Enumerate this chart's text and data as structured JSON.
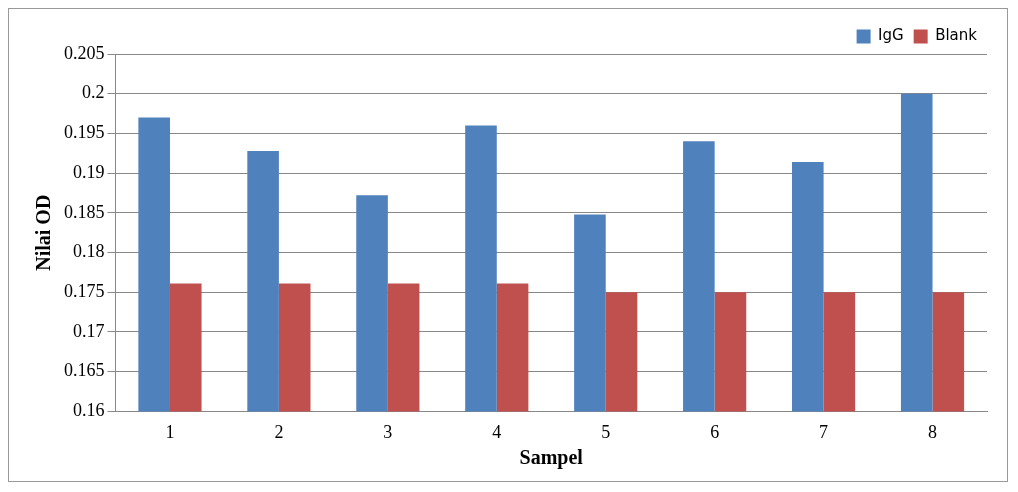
{
  "chart_data": {
    "type": "bar",
    "xlabel": "Sampel",
    "ylabel": "Nilai OD",
    "categories": [
      "1",
      "2",
      "3",
      "4",
      "5",
      "6",
      "7",
      "8"
    ],
    "series": [
      {
        "name": "IgG",
        "color": "#4f81bd",
        "values": [
          0.197,
          0.1928,
          0.1872,
          0.196,
          0.1848,
          0.194,
          0.1914,
          0.2
        ]
      },
      {
        "name": "Blank",
        "color": "#c0504d",
        "values": [
          0.1761,
          0.1761,
          0.1761,
          0.1761,
          0.175,
          0.175,
          0.175,
          0.175
        ]
      }
    ],
    "ylim": [
      0.16,
      0.205
    ],
    "yticks": [
      0.16,
      0.165,
      0.17,
      0.175,
      0.18,
      0.185,
      0.19,
      0.195,
      0.2,
      0.205
    ],
    "grid": "y",
    "legend": "top right"
  }
}
